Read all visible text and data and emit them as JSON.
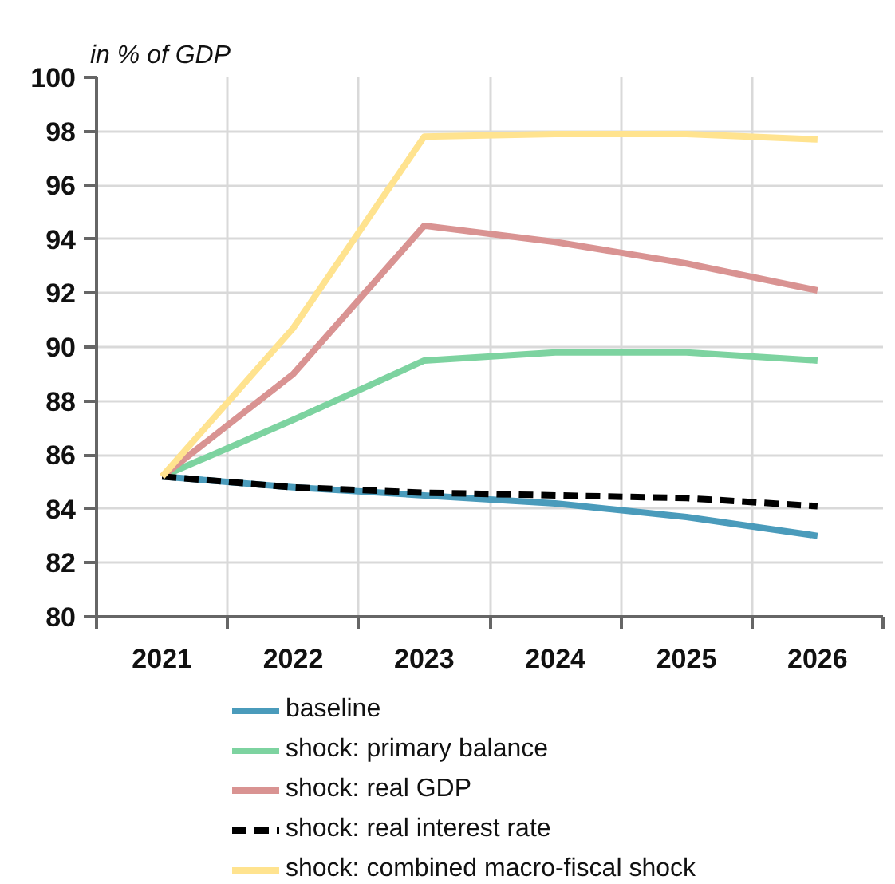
{
  "chart_data": {
    "type": "line",
    "ylabel": "in % of GDP",
    "categories": [
      "2021",
      "2022",
      "2023",
      "2024",
      "2025",
      "2026"
    ],
    "ylim": [
      80,
      100
    ],
    "yticks": [
      80,
      82,
      84,
      86,
      88,
      90,
      92,
      94,
      96,
      98,
      100
    ],
    "grid": true,
    "legend": "bottom",
    "line_style": "solid",
    "series": [
      {
        "name": "baseline",
        "color": "#4a9bbb",
        "values": [
          85.2,
          84.8,
          84.5,
          84.2,
          83.7,
          83.0
        ]
      },
      {
        "name": "shock: primary balance",
        "color": "#7dd3a0",
        "values": [
          85.2,
          87.3,
          89.5,
          89.8,
          89.8,
          89.5
        ]
      },
      {
        "name": "shock: real GDP",
        "color": "#d99392",
        "values": [
          85.2,
          89.0,
          94.5,
          93.9,
          93.1,
          92.1
        ]
      },
      {
        "name": "shock: real interest rate",
        "color": "#000000",
        "line_style": "dashed",
        "values": [
          85.2,
          84.8,
          84.6,
          84.5,
          84.4,
          84.1
        ]
      },
      {
        "name": "shock: combined macro-fiscal shock",
        "color": "#ffe38f",
        "values": [
          85.2,
          90.7,
          97.8,
          97.9,
          97.9,
          97.7
        ]
      }
    ]
  }
}
